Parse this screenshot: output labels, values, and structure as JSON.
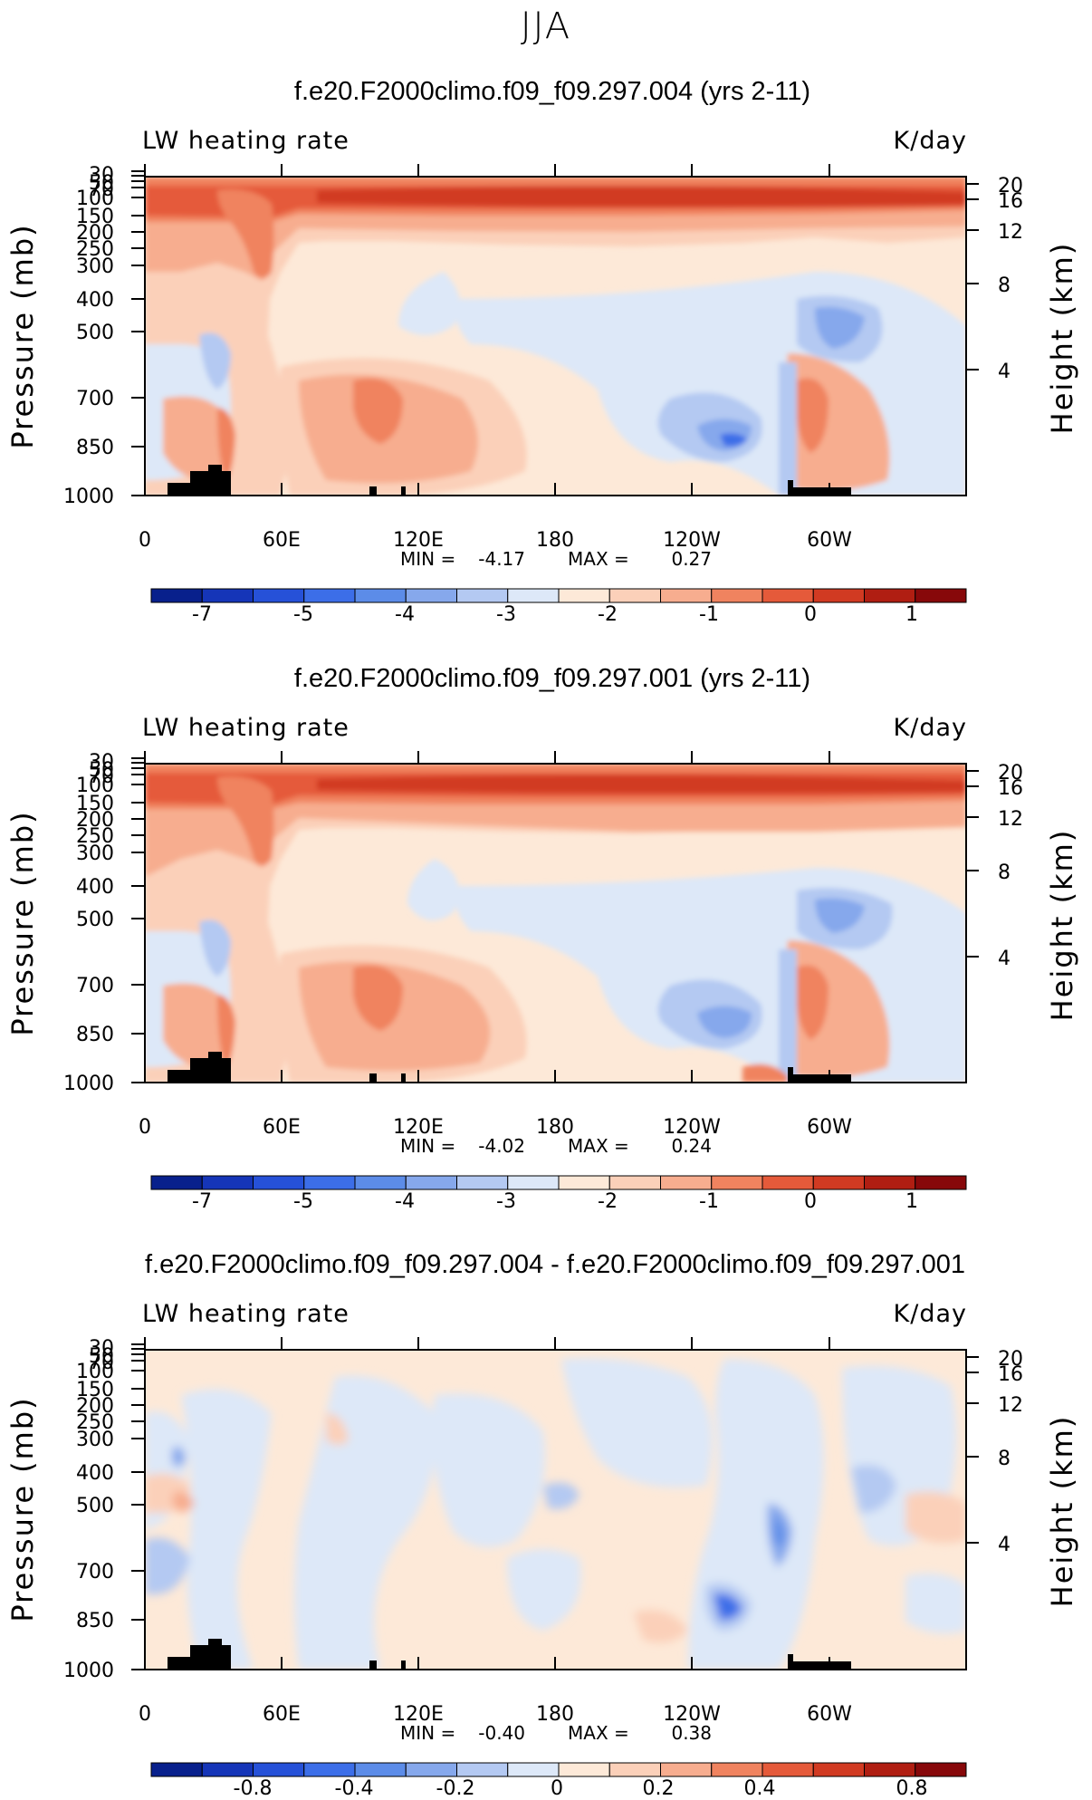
{
  "figure_title": "JJA",
  "chart_data": [
    {
      "type": "heatmap",
      "title": "f.e20.F2000climo.f09_f09.297.004 (yrs 2-11)",
      "left_label": "LW heating rate",
      "right_label": "K/day",
      "ylabel": "Pressure (mb)",
      "ylabel_right": "Height (km)",
      "x_ticks": [
        "0",
        "60E",
        "120E",
        "180",
        "120W",
        "60W"
      ],
      "x_range": [
        0,
        360
      ],
      "pressure_ticks": [
        "30",
        "50",
        "70",
        "100",
        "150",
        "200",
        "250",
        "300",
        "400",
        "500",
        "700",
        "850",
        "1000"
      ],
      "height_ticks": [
        "20",
        "16",
        "12",
        "8",
        "4"
      ],
      "min_label": "MIN = ",
      "min": "-4.17",
      "max_label": "MAX = ",
      "max": "0.27",
      "colorbar_labels": [
        "-7",
        "-5",
        "-4",
        "-3",
        "-2",
        "-1",
        "0",
        "1"
      ],
      "colorbar_colors": [
        "#08208c",
        "#1535b8",
        "#2651d8",
        "#3c6ee8",
        "#5c8ce8",
        "#86a8ec",
        "#b4c9f2",
        "#dde8f8",
        "#fde9d8",
        "#fbd0b9",
        "#f7ad8f",
        "#f0835f",
        "#e55a3a",
        "#d13a22",
        "#b01e12",
        "#87080a"
      ]
    },
    {
      "type": "heatmap",
      "title": "f.e20.F2000climo.f09_f09.297.001 (yrs 2-11)",
      "left_label": "LW heating rate",
      "right_label": "K/day",
      "ylabel": "Pressure (mb)",
      "ylabel_right": "Height (km)",
      "x_ticks": [
        "0",
        "60E",
        "120E",
        "180",
        "120W",
        "60W"
      ],
      "x_range": [
        0,
        360
      ],
      "pressure_ticks": [
        "30",
        "50",
        "70",
        "100",
        "150",
        "200",
        "250",
        "300",
        "400",
        "500",
        "700",
        "850",
        "1000"
      ],
      "height_ticks": [
        "20",
        "16",
        "12",
        "8",
        "4"
      ],
      "min_label": "MIN = ",
      "min": "-4.02",
      "max_label": "MAX = ",
      "max": "0.24",
      "colorbar_labels": [
        "-7",
        "-5",
        "-4",
        "-3",
        "-2",
        "-1",
        "0",
        "1"
      ],
      "colorbar_colors": [
        "#08208c",
        "#1535b8",
        "#2651d8",
        "#3c6ee8",
        "#5c8ce8",
        "#86a8ec",
        "#b4c9f2",
        "#dde8f8",
        "#fde9d8",
        "#fbd0b9",
        "#f7ad8f",
        "#f0835f",
        "#e55a3a",
        "#d13a22",
        "#b01e12",
        "#87080a"
      ]
    },
    {
      "type": "heatmap",
      "title": "f.e20.F2000climo.f09_f09.297.004 - f.e20.F2000climo.f09_f09.297.001",
      "left_label": "LW heating rate",
      "right_label": "K/day",
      "ylabel": "Pressure (mb)",
      "ylabel_right": "Height (km)",
      "x_ticks": [
        "0",
        "60E",
        "120E",
        "180",
        "120W",
        "60W"
      ],
      "x_range": [
        0,
        360
      ],
      "pressure_ticks": [
        "30",
        "50",
        "70",
        "100",
        "150",
        "200",
        "250",
        "300",
        "400",
        "500",
        "700",
        "850",
        "1000"
      ],
      "height_ticks": [
        "20",
        "16",
        "12",
        "8",
        "4"
      ],
      "min_label": "MIN = ",
      "min": "-0.40",
      "max_label": "MAX = ",
      "max": "0.38",
      "colorbar_labels": [
        "-0.8",
        "-0.4",
        "-0.2",
        "0",
        "0.2",
        "0.4",
        "0.8"
      ],
      "colorbar_colors": [
        "#08208c",
        "#1535b8",
        "#2651d8",
        "#3c6ee8",
        "#5c8ce8",
        "#86a8ec",
        "#b4c9f2",
        "#dde8f8",
        "#fde9d8",
        "#fbd0b9",
        "#f7ad8f",
        "#f0835f",
        "#e55a3a",
        "#d13a22",
        "#b01e12",
        "#87080a"
      ]
    }
  ]
}
